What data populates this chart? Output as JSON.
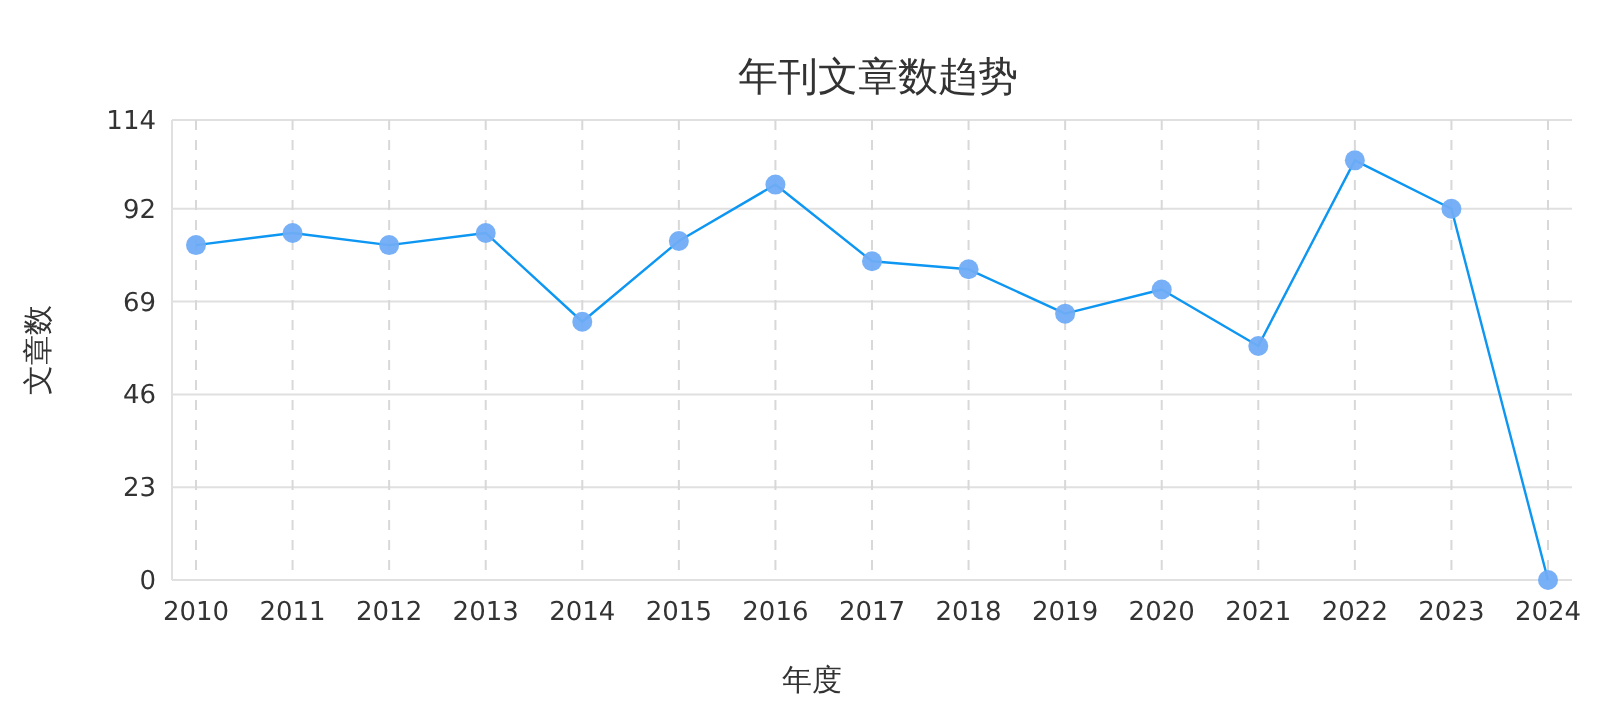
{
  "chart_data": {
    "type": "line",
    "title": "年刊文章数趋势",
    "xlabel": "年度",
    "ylabel": "文章数",
    "categories": [
      "2010",
      "2011",
      "2012",
      "2013",
      "2014",
      "2015",
      "2016",
      "2017",
      "2018",
      "2019",
      "2020",
      "2021",
      "2022",
      "2023",
      "2024"
    ],
    "series": [
      {
        "color": "#0d96f2",
        "values": [
          83,
          86,
          83,
          86,
          64,
          84,
          98,
          79,
          77,
          66,
          72,
          58,
          104,
          92,
          0
        ]
      }
    ],
    "ylim": [
      0,
      114
    ],
    "yticks": [
      0,
      23,
      46,
      69,
      92,
      114
    ],
    "grid": true,
    "marker": "circle",
    "line_style": "solid"
  }
}
